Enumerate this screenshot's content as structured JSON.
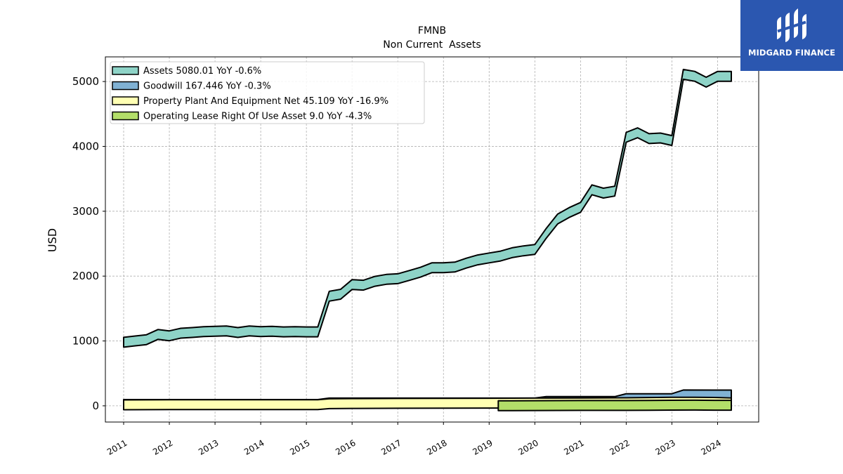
{
  "chart_data": {
    "type": "area",
    "title": "FMNB",
    "subtitle": "Non Current  Assets",
    "ylabel": "USD",
    "xlabel": "",
    "xlim": [
      2010.6,
      2024.9
    ],
    "ylim": [
      -250,
      5380
    ],
    "yticks": [
      0,
      1000,
      2000,
      3000,
      4000,
      5000
    ],
    "xticks": [
      "2011",
      "2012",
      "2013",
      "2014",
      "2015",
      "2016",
      "2017",
      "2018",
      "2019",
      "2020",
      "2021",
      "2022",
      "2023",
      "2024"
    ],
    "grid": true,
    "legend_position": "upper-left",
    "series": [
      {
        "name": "Assets",
        "legend": "Assets  5080.01 YoY -0.6%",
        "color": "#8ed3c7",
        "x": [
          2011.0,
          2011.25,
          2011.5,
          2011.75,
          2012.0,
          2012.25,
          2012.5,
          2012.75,
          2013.0,
          2013.25,
          2013.5,
          2013.75,
          2014.0,
          2014.25,
          2014.5,
          2014.75,
          2015.0,
          2015.25,
          2015.5,
          2015.75,
          2016.0,
          2016.25,
          2016.5,
          2016.75,
          2017.0,
          2017.25,
          2017.5,
          2017.75,
          2018.0,
          2018.25,
          2018.5,
          2018.75,
          2019.0,
          2019.25,
          2019.5,
          2019.75,
          2020.0,
          2020.25,
          2020.5,
          2020.75,
          2021.0,
          2021.25,
          2021.5,
          2021.75,
          2022.0,
          2022.25,
          2022.5,
          2022.75,
          2023.0,
          2023.25,
          2023.5,
          2023.75,
          2024.0,
          2024.3
        ],
        "values": [
          980,
          1000,
          1020,
          1100,
          1080,
          1120,
          1130,
          1145,
          1150,
          1155,
          1130,
          1155,
          1145,
          1150,
          1140,
          1145,
          1140,
          1140,
          1690,
          1720,
          1870,
          1860,
          1920,
          1950,
          1960,
          2010,
          2060,
          2130,
          2130,
          2140,
          2200,
          2250,
          2280,
          2310,
          2360,
          2390,
          2410,
          2660,
          2880,
          2980,
          3060,
          3330,
          3280,
          3310,
          4140,
          4210,
          4120,
          4130,
          4090,
          5110,
          5080,
          4990,
          5080,
          5080
        ]
      },
      {
        "name": "Goodwill",
        "legend": "Goodwill  167.446 YoY -0.3%",
        "color": "#80b1d3",
        "x": [
          2011.0,
          2015.25,
          2015.5,
          2020.0,
          2020.25,
          2021.75,
          2022.0,
          2023.0,
          2023.25,
          2024.3
        ],
        "values": [
          21,
          21,
          43,
          43,
          66,
          66,
          110,
          110,
          168,
          167
        ]
      },
      {
        "name": "Property Plant And Equipment Net",
        "legend": "Property Plant And Equipment Net  45.109 YoY -16.9%",
        "color": "#ffffb3",
        "x": [
          2011.0,
          2012.0,
          2013.0,
          2014.0,
          2015.0,
          2015.25,
          2015.5,
          2016.0,
          2017.0,
          2018.0,
          2019.0,
          2020.0,
          2021.0,
          2022.0,
          2023.0,
          2023.5,
          2024.0,
          2024.3
        ],
        "values": [
          15,
          17,
          19,
          19,
          18,
          18,
          33,
          36,
          38,
          40,
          41,
          43,
          44,
          48,
          55,
          55,
          52,
          45
        ]
      },
      {
        "name": "Operating Lease Right Of Use Asset",
        "legend": "Operating Lease Right Of Use Asset  9.0 YoY -4.3%",
        "color": "#b3de69",
        "x": [
          2019.2,
          2019.5,
          2020.0,
          2020.5,
          2021.0,
          2021.5,
          2022.0,
          2022.5,
          2023.0,
          2023.5,
          2024.0,
          2024.3
        ],
        "values": [
          2,
          2,
          3,
          4,
          5,
          6,
          6,
          8,
          10,
          11,
          9,
          9
        ]
      }
    ]
  },
  "logo": {
    "text": "MIDGARD FINANCE",
    "background": "#2b57b0"
  }
}
